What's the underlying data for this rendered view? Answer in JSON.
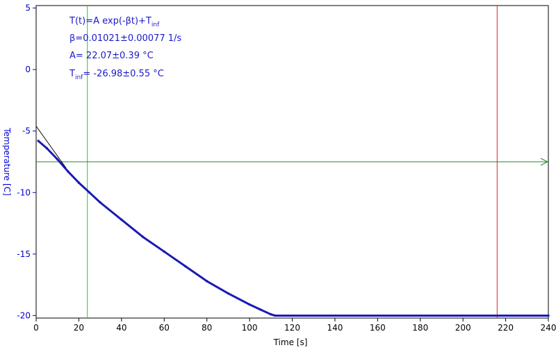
{
  "chart_data": {
    "type": "line",
    "xlabel": "Time [s]",
    "ylabel": "Temperature [C]",
    "xlim": [
      0,
      240
    ],
    "ylim": [
      -20.2,
      5.2
    ],
    "xticks": [
      0,
      20,
      40,
      60,
      80,
      100,
      120,
      140,
      160,
      180,
      200,
      220,
      240
    ],
    "yticks": [
      5,
      0,
      -5,
      -10,
      -15,
      -20
    ],
    "grid": false,
    "colors": {
      "axis": "#0000cc",
      "data": "#1a1ab4",
      "fit": "#000000",
      "cursor_left": "#22cc22",
      "cursor_right": "#dd2222",
      "h_cursor": "#228822"
    },
    "series": [
      {
        "kind": "measured",
        "x": [
          1,
          5,
          10,
          15,
          20,
          25,
          30,
          40,
          50,
          60,
          70,
          80,
          90,
          100,
          105,
          110,
          112,
          120,
          140,
          160,
          180,
          200,
          220,
          240
        ],
        "y": [
          -5.8,
          -6.4,
          -7.3,
          -8.3,
          -9.2,
          -10.0,
          -10.8,
          -12.2,
          -13.6,
          -14.8,
          -16.0,
          -17.2,
          -18.2,
          -19.1,
          -19.5,
          -19.9,
          -20.0,
          -20.0,
          -20.0,
          -20.0,
          -20.0,
          -20.0,
          -20.0,
          -20.0
        ]
      },
      {
        "kind": "fit",
        "x": [
          0,
          14
        ],
        "y": [
          -4.6,
          -8.0
        ]
      }
    ],
    "cursors": {
      "vertical": [
        24,
        216
      ],
      "horizontal": -7.5
    },
    "annotations": {
      "formula_main": "T(t)=A exp(-βt)+T",
      "formula_sub": "inf",
      "beta": "β=0.01021±0.00077 1/s",
      "amplitude": "A= 22.07±0.39 °C",
      "tinf_main": "T",
      "tinf_sub": "inf",
      "tinf_value": "= -26.98±0.55 °C"
    }
  }
}
